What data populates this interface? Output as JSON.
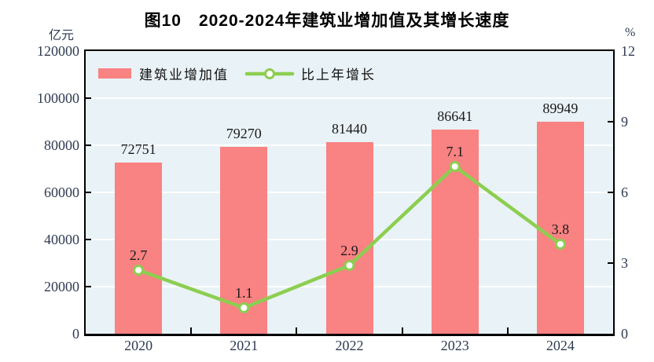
{
  "title": "图10　2020-2024年建筑业增加值及其增长速度",
  "left_axis": {
    "unit": "亿元",
    "tick_labels": [
      "120000",
      "100000",
      "80000",
      "60000",
      "40000",
      "20000",
      "0"
    ],
    "min": 0,
    "max": 120000
  },
  "right_axis": {
    "unit": "%",
    "tick_labels": [
      "12",
      "9",
      "6",
      "3",
      "0"
    ],
    "min": 0,
    "max": 12
  },
  "legend": [
    {
      "label": "建筑业增加值",
      "type": "bar"
    },
    {
      "label": "比上年增长",
      "type": "line"
    }
  ],
  "chart_data": {
    "type": "bar+line",
    "title": "图10　2020-2024年建筑业增加值及其增长速度",
    "categories": [
      "2020",
      "2021",
      "2022",
      "2023",
      "2024"
    ],
    "series": [
      {
        "name": "建筑业增加值",
        "type": "bar",
        "axis": "left",
        "values": [
          72751,
          79270,
          81440,
          86641,
          89949
        ],
        "value_labels": [
          "72751",
          "79270",
          "81440",
          "86641",
          "89949"
        ]
      },
      {
        "name": "比上年增长",
        "type": "line",
        "axis": "right",
        "values": [
          2.7,
          1.1,
          2.9,
          7.1,
          3.8
        ],
        "value_labels": [
          "2.7",
          "1.1",
          "2.9",
          "7.1",
          "3.8"
        ]
      }
    ],
    "left_ylim": [
      0,
      120000
    ],
    "right_ylim": [
      0,
      12
    ],
    "grid": true,
    "gridline_interval_left_axis": 20000,
    "legend_position": "top-left-inside"
  },
  "colors": {
    "bar": "#F98282",
    "line": "#8CCE50",
    "marker_fill": "#FFFFFF",
    "plot_background": "#E9F2F6",
    "gridline": "#FFFFFF",
    "axis": "#000000",
    "tick_label": "#2E3B52",
    "data_label": "#1A1A1A"
  }
}
